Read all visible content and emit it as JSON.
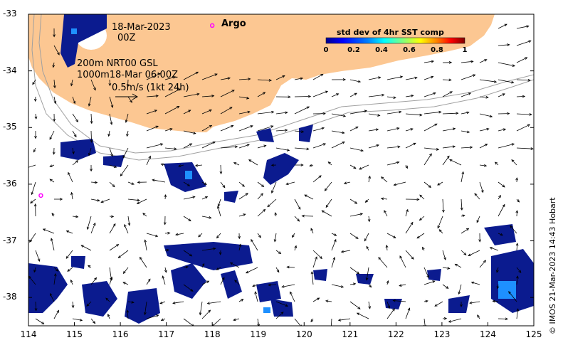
{
  "map": {
    "date_line1": "18-Mar-2023",
    "date_line2": "00Z",
    "argo_label": "Argo",
    "legend_line1": "200m  NRT00 GSL",
    "legend_line2": "1000m18-Mar 06:00Z",
    "legend_line3": "0.5m/s (1kt 24h)",
    "credit": "© IMOS 21-Mar-2023 14:43 Hobart",
    "x_ticks": [
      "114",
      "115",
      "116",
      "117",
      "118",
      "119",
      "120",
      "121",
      "122",
      "123",
      "124",
      "125"
    ],
    "y_ticks": [
      "-33",
      "-34",
      "-35",
      "-36",
      "-37",
      "-38"
    ],
    "lon_range": [
      114,
      125
    ],
    "lat_range": [
      -38.5,
      -33
    ],
    "colors": {
      "land": "#fcc792",
      "argo": "#ff00ff",
      "contour": "#a0a0a0",
      "sst_low": "#0b1b8f"
    }
  },
  "colorbar": {
    "title": "std dev of 4hr SST comp",
    "ticks": [
      "0",
      "0.2",
      "0.4",
      "0.6",
      "0.8",
      "1"
    ],
    "colors": [
      "#00008f",
      "#0000ff",
      "#0080ff",
      "#00ffff",
      "#80ff80",
      "#ffff00",
      "#ff8000",
      "#ff0000",
      "#800000"
    ]
  },
  "argo_floats": [
    {
      "lon": 118.0,
      "lat": -33.2
    },
    {
      "lon": 114.27,
      "lat": -36.2
    }
  ]
}
